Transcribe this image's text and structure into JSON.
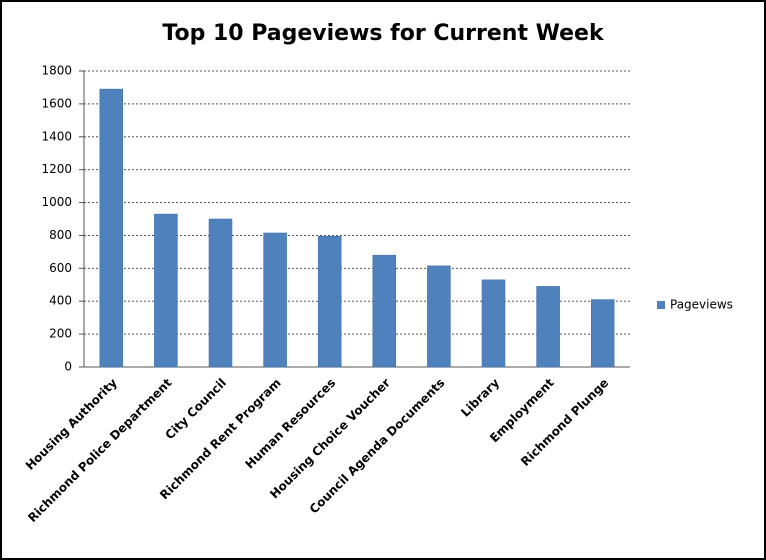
{
  "chart_data": {
    "type": "bar",
    "title": "Top 10 Pageviews for Current Week",
    "categories": [
      "Housing Authority",
      "Richmond Police Department",
      "City Council",
      "Richmond Rent Program",
      "Human Resources",
      "Housing Choice Voucher",
      "Council Agenda Documents",
      "Library",
      "Employment",
      "Richmond Plunge"
    ],
    "series": [
      {
        "name": "Pageviews",
        "color": "#4f81bd",
        "values": [
          1690,
          930,
          900,
          815,
          795,
          680,
          615,
          530,
          490,
          410
        ]
      }
    ],
    "ylim": [
      0,
      1800
    ],
    "yticks": [
      0,
      200,
      400,
      600,
      800,
      1000,
      1200,
      1400,
      1600,
      1800
    ],
    "grid": true,
    "legend": "right"
  }
}
